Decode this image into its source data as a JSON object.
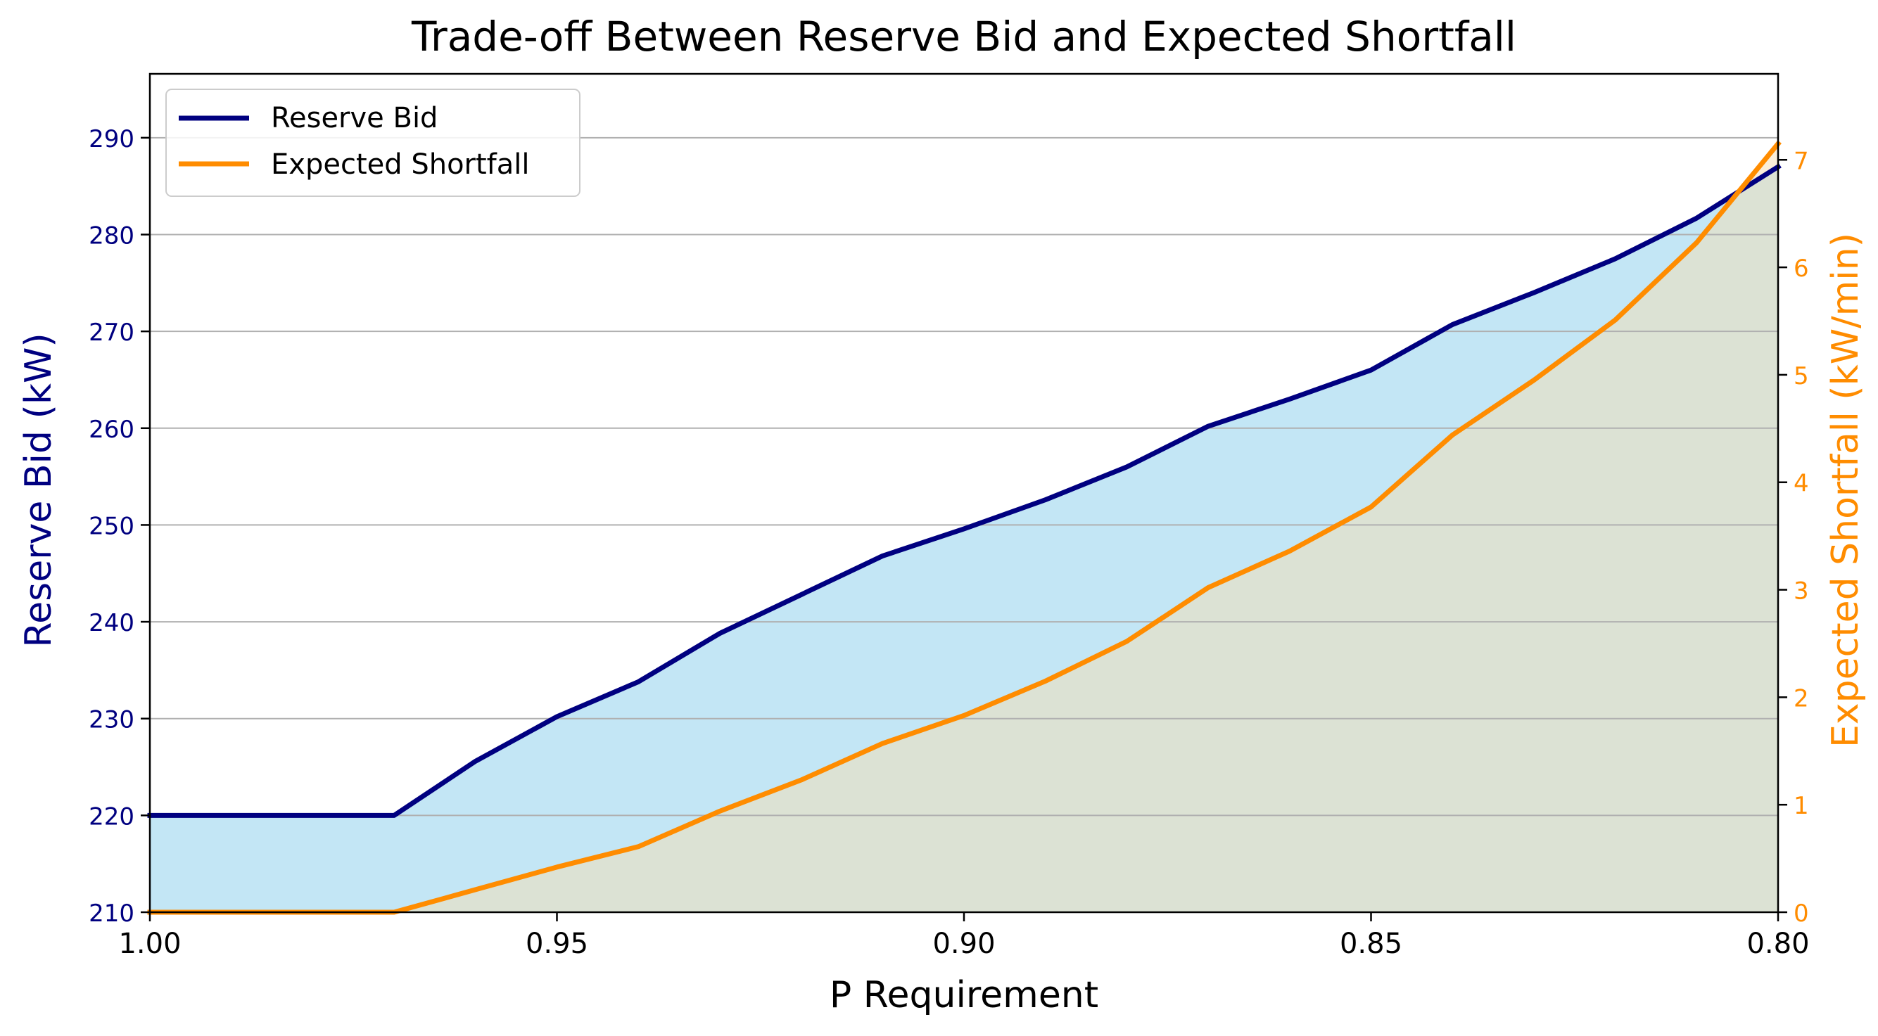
{
  "chart_data": {
    "type": "line",
    "title": "Trade-off Between Reserve Bid and Expected Shortfall",
    "xlabel": "P Requirement",
    "ylabel_left": "Reserve Bid (kW)",
    "ylabel_right": "Expected Shortfall (kW/min)",
    "x": [
      1.0,
      0.99,
      0.98,
      0.97,
      0.96,
      0.95,
      0.94,
      0.93,
      0.92,
      0.91,
      0.9,
      0.89,
      0.88,
      0.87,
      0.86,
      0.85,
      0.84,
      0.83,
      0.82,
      0.81,
      0.8
    ],
    "xlim": [
      1.0,
      0.8
    ],
    "x_reversed": true,
    "xticks": [
      1.0,
      0.95,
      0.9,
      0.85,
      0.8
    ],
    "xtick_labels": [
      "1.00",
      "0.95",
      "0.90",
      "0.85",
      "0.80"
    ],
    "ylim_left": [
      210,
      296.6
    ],
    "yticks_left": [
      210,
      220,
      230,
      240,
      250,
      260,
      270,
      280,
      290
    ],
    "ytick_labels_left": [
      "210",
      "220",
      "230",
      "240",
      "250",
      "260",
      "270",
      "280",
      "290"
    ],
    "ylim_right": [
      0,
      7.8
    ],
    "yticks_right": [
      0,
      1,
      2,
      3,
      4,
      5,
      6,
      7
    ],
    "ytick_labels_right": [
      "0",
      "1",
      "2",
      "3",
      "4",
      "5",
      "6",
      "7"
    ],
    "grid": "horizontal",
    "legend_position": "upper left",
    "series": [
      {
        "name": "Reserve Bid",
        "axis": "left",
        "color": "#000080",
        "fill": "#87ceeb",
        "values": [
          220.0,
          220.0,
          220.0,
          220.0,
          225.6,
          230.2,
          233.8,
          238.8,
          242.8,
          246.8,
          249.6,
          252.6,
          256.0,
          260.2,
          263.0,
          266.0,
          270.7,
          274.0,
          277.5,
          281.7,
          287.0
        ]
      },
      {
        "name": "Expected Shortfall",
        "axis": "right",
        "color": "#ff8c00",
        "fill": "#f5deb3",
        "values": [
          0.0,
          0.0,
          0.0,
          0.0,
          0.21,
          0.42,
          0.61,
          0.94,
          1.23,
          1.57,
          1.83,
          2.15,
          2.52,
          3.02,
          3.36,
          3.77,
          4.44,
          4.95,
          5.51,
          6.23,
          7.15
        ]
      }
    ]
  }
}
